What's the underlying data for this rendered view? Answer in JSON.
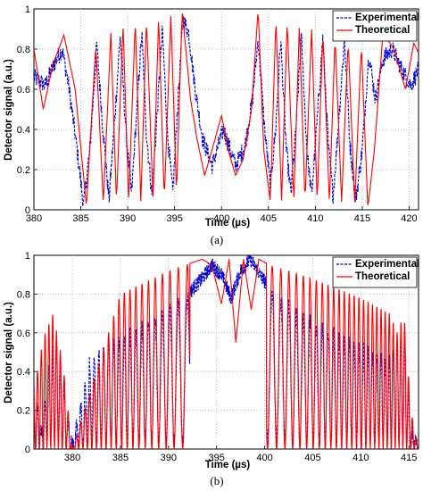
{
  "chart_data": [
    {
      "type": "line",
      "caption": "(a)",
      "xlabel": "Time (µs)",
      "ylabel": "Detector signal (a.u.)",
      "xlim": [
        380,
        421
      ],
      "ylim": [
        0,
        1
      ],
      "xticks": [
        380,
        385,
        390,
        395,
        400,
        405,
        410,
        415,
        420
      ],
      "yticks": [
        0,
        0.2,
        0.4,
        0.6,
        0.8,
        1
      ],
      "ytick_labels": [
        "0",
        "0.2",
        "0.4",
        "0.6",
        "0.8",
        "1"
      ],
      "grid": true,
      "legend_position": "top-right",
      "series": [
        {
          "name": "Experimental",
          "color": "#0000cc",
          "style": "dash-dot, noisy",
          "x": [
            380,
            381.2,
            382.2,
            383.0,
            383.7,
            384.6,
            385.3,
            386.0,
            386.7,
            387.4,
            388.0,
            388.6,
            389.2,
            389.8,
            390.4,
            390.9,
            391.5,
            392.0,
            392.6,
            393.1,
            393.7,
            394.2,
            394.8,
            395.3,
            395.9,
            396.5,
            397.2,
            398.0,
            399.0,
            400.2,
            401.5,
            402.5,
            403.3,
            403.9,
            404.6,
            405.2,
            405.8,
            406.3,
            406.9,
            407.4,
            408.0,
            408.5,
            409.1,
            409.6,
            410.2,
            410.8,
            411.4,
            411.9,
            412.5,
            413.1,
            413.7,
            414.3,
            415.0,
            415.7,
            416.4,
            417.2,
            418.2,
            419.2,
            420.2,
            421
          ],
          "y": [
            0.66,
            0.62,
            0.73,
            0.8,
            0.62,
            0.3,
            0.02,
            0.32,
            0.82,
            0.38,
            0.05,
            0.44,
            0.87,
            0.4,
            0.07,
            0.45,
            0.88,
            0.38,
            0.06,
            0.45,
            0.9,
            0.4,
            0.08,
            0.5,
            0.95,
            0.88,
            0.6,
            0.35,
            0.22,
            0.4,
            0.22,
            0.32,
            0.55,
            0.85,
            0.4,
            0.12,
            0.42,
            0.85,
            0.3,
            0.08,
            0.45,
            0.86,
            0.3,
            0.07,
            0.45,
            0.86,
            0.3,
            0.07,
            0.45,
            0.85,
            0.32,
            0.05,
            0.3,
            0.78,
            0.55,
            0.75,
            0.8,
            0.7,
            0.62,
            0.7
          ]
        },
        {
          "name": "Theoretical",
          "color": "#ff0000",
          "style": "solid",
          "x": [
            380,
            381.0,
            382.0,
            383.2,
            384.4,
            385.6,
            386.6,
            387.4,
            388.2,
            388.8,
            389.5,
            390.1,
            390.8,
            391.4,
            392.0,
            392.7,
            393.3,
            393.9,
            394.6,
            395.2,
            395.8,
            396.7,
            397.4,
            398.2,
            399.0,
            400.0,
            400.7,
            401.5,
            402.3,
            403.2,
            403.9,
            404.5,
            405.2,
            405.8,
            406.4,
            407.0,
            407.7,
            408.3,
            408.9,
            409.6,
            410.2,
            410.8,
            411.5,
            412.1,
            412.8,
            413.5,
            414.2,
            414.9,
            415.6,
            416.3,
            417.2,
            418.4,
            419.6,
            420.5,
            421
          ],
          "y": [
            0.8,
            0.5,
            0.72,
            0.87,
            0.6,
            0.02,
            0.82,
            0.03,
            0.88,
            0.04,
            0.92,
            0.04,
            0.94,
            0.04,
            0.95,
            0.05,
            0.96,
            0.05,
            0.97,
            0.08,
            0.99,
            0.55,
            0.35,
            0.17,
            0.3,
            0.47,
            0.3,
            0.17,
            0.25,
            0.5,
            1.0,
            0.3,
            0.04,
            0.96,
            0.04,
            0.94,
            0.04,
            0.92,
            0.04,
            0.9,
            0.04,
            0.88,
            0.04,
            0.86,
            0.04,
            0.84,
            0.03,
            0.82,
            0.01,
            0.3,
            0.88,
            0.8,
            0.6,
            0.83,
            0.78
          ]
        }
      ]
    },
    {
      "type": "line",
      "caption": "(b)",
      "xlabel": "Time (µs)",
      "ylabel": "Detector signal (a.u.)",
      "xlim": [
        376,
        416
      ],
      "ylim": [
        0,
        1
      ],
      "xticks": [
        380,
        385,
        390,
        395,
        400,
        405,
        410,
        415
      ],
      "yticks": [
        0,
        0.2,
        0.4,
        0.6,
        0.8,
        1
      ],
      "ytick_labels": [
        "0",
        "0.2",
        "0.4",
        "0.6",
        "0.8",
        "1"
      ],
      "grid": true,
      "legend_position": "top-right",
      "series": [
        {
          "name": "Experimental",
          "color": "#0000cc",
          "style": "dash-dot, noisy",
          "x": [
            376,
            376.8,
            377.6,
            378.4,
            379.2,
            380,
            382,
            384,
            386,
            388,
            390,
            392,
            393.5,
            394.5,
            395.5,
            396.5,
            397.5,
            398.5,
            399.5,
            401,
            403,
            405,
            407,
            409,
            411,
            413,
            413.8,
            414.5,
            415.2,
            416
          ],
          "y": [
            0.32,
            0.1,
            0.45,
            0.58,
            0.3,
            0.02,
            0.5,
            0.55,
            0.6,
            0.65,
            0.72,
            0.8,
            0.88,
            0.95,
            0.9,
            0.78,
            0.92,
            0.98,
            0.9,
            0.8,
            0.72,
            0.65,
            0.6,
            0.55,
            0.5,
            0.45,
            0.58,
            0.6,
            0.1,
            0.05
          ]
        },
        {
          "name": "Theoretical",
          "color": "#ff0000",
          "style": "solid",
          "x": [
            376,
            377,
            378,
            379,
            380,
            385,
            390,
            393.5,
            394.5,
            395.5,
            396.3,
            397.0,
            397.8,
            398.6,
            399.4,
            400.5,
            405,
            410,
            413,
            413.8,
            414.5,
            415.2,
            416
          ],
          "y": [
            0.3,
            0.58,
            0.7,
            0.45,
            0.0,
            0.8,
            0.92,
            0.98,
            0.95,
            0.75,
            0.98,
            0.55,
            0.98,
            0.72,
            0.98,
            0.95,
            0.88,
            0.78,
            0.7,
            0.6,
            0.7,
            0.2,
            0.0
          ],
          "envelope_note": "rapid oscillations between 0 and the upper envelope, chirped toward the centre"
        }
      ]
    }
  ]
}
